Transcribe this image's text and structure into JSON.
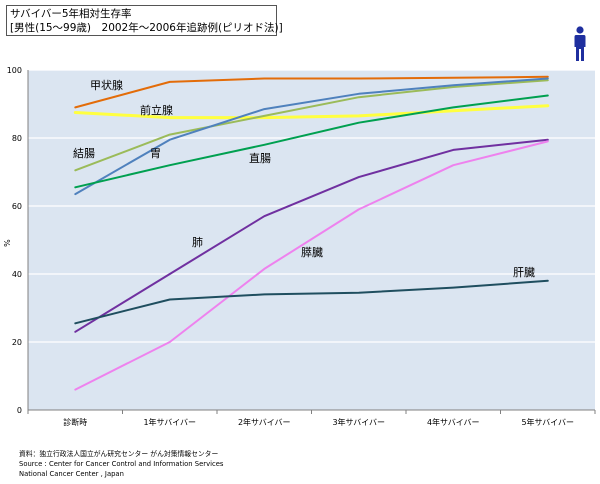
{
  "title": {
    "line1": "サバイバー5年相対生存率",
    "line2": "[男性(15～99歳)　2002年～2006年追跡例(ピリオド法)]"
  },
  "icon": "male-person-icon",
  "colors": {
    "plot_bg": "#dbe5f1",
    "gridline": "#ffffff",
    "icon": "#1f2f9f"
  },
  "chart_data": {
    "type": "line",
    "title": "サバイバー5年相対生存率",
    "xlabel": "",
    "ylabel": "%",
    "ylim": [
      0,
      100
    ],
    "yticks": [
      0,
      20,
      40,
      60,
      80,
      100
    ],
    "grid": true,
    "categories": [
      "診断時",
      "1年サバイバー",
      "2年サバイバー",
      "3年サバイバー",
      "4年サバイバー",
      "5年サバイバー"
    ],
    "series": [
      {
        "name": "甲状腺",
        "color": "#e36c09",
        "values": [
          89,
          96.5,
          97.5,
          97.5,
          97.7,
          98
        ]
      },
      {
        "name": "前立腺",
        "color": "#ffff40",
        "values": [
          87.5,
          86,
          86,
          86.5,
          88,
          89.5
        ]
      },
      {
        "name": "結腸",
        "color": "#9bbb59",
        "values": [
          70.5,
          81,
          86.5,
          92,
          95,
          97
        ]
      },
      {
        "name": "胃",
        "color": "#4f81bd",
        "values": [
          63.5,
          79.5,
          88.5,
          93,
          95.5,
          97.5
        ]
      },
      {
        "name": "直腸",
        "color": "#00a050",
        "values": [
          65.5,
          72,
          78,
          84.5,
          89,
          92.5
        ]
      },
      {
        "name": "肺",
        "color": "#7030a0",
        "values": [
          23,
          40,
          57,
          68.5,
          76.5,
          79.5
        ]
      },
      {
        "name": "膵臓",
        "color": "#ee82ee",
        "values": [
          6,
          20,
          41.5,
          59,
          72,
          79
        ]
      },
      {
        "name": "肝臓",
        "color": "#1f4e5f",
        "values": [
          25.5,
          32.5,
          34,
          34.5,
          36,
          38
        ]
      }
    ]
  },
  "source": {
    "line1": "資料：独立行政法人国立がん研究センター がん対策情報センター",
    "line2": "Source : Center for Cancer Control and Information Services",
    "line3": "National Cancer Center , Japan"
  }
}
